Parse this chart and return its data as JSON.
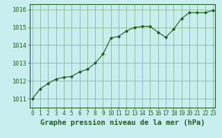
{
  "x": [
    0,
    1,
    2,
    3,
    4,
    5,
    6,
    7,
    8,
    9,
    10,
    11,
    12,
    13,
    14,
    15,
    16,
    17,
    18,
    19,
    20,
    21,
    22,
    23
  ],
  "y": [
    1011.0,
    1011.55,
    1011.85,
    1012.1,
    1012.2,
    1012.25,
    1012.5,
    1012.65,
    1013.0,
    1013.5,
    1014.4,
    1014.5,
    1014.8,
    1015.0,
    1015.05,
    1015.05,
    1014.72,
    1014.45,
    1014.9,
    1015.5,
    1015.82,
    1015.82,
    1015.82,
    1015.95
  ],
  "line_color": "#1e5e1e",
  "marker_color": "#1e5e1e",
  "bg_color": "#c8eef0",
  "grid_color": "#7aaa7a",
  "axis_color": "#1e5e1e",
  "title": "Graphe pression niveau de la mer (hPa)",
  "xlabel_ticks": [
    "0",
    "1",
    "2",
    "3",
    "4",
    "5",
    "6",
    "7",
    "8",
    "9",
    "10",
    "11",
    "12",
    "13",
    "14",
    "15",
    "16",
    "17",
    "18",
    "19",
    "20",
    "21",
    "22",
    "23"
  ],
  "yticks": [
    1011,
    1012,
    1013,
    1014,
    1015,
    1016
  ],
  "ylim": [
    1010.5,
    1016.3
  ],
  "xlim": [
    -0.3,
    23.3
  ],
  "title_fontsize": 7.5,
  "tick_fontsize": 6.2
}
